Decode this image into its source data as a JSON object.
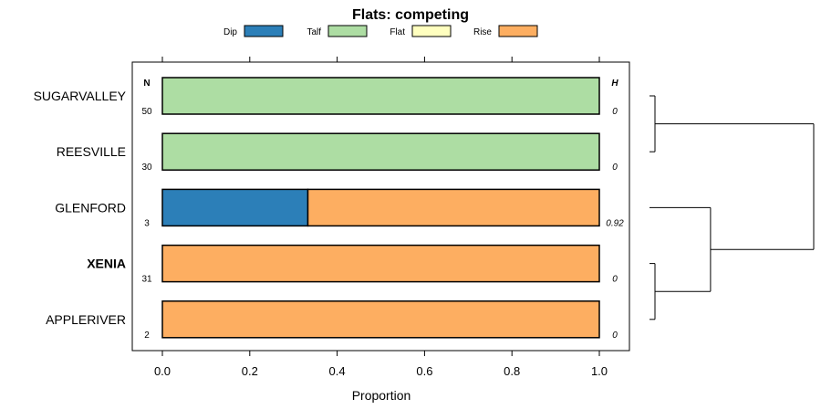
{
  "chart_data": {
    "type": "stacked-bar-horizontal",
    "title": "Flats: competing",
    "xlabel": "Proportion",
    "xlim": [
      0,
      1
    ],
    "x_ticks": [
      "0.0",
      "0.2",
      "0.4",
      "0.6",
      "0.8",
      "1.0"
    ],
    "left_header": "N",
    "right_header": "H",
    "legend": [
      {
        "name": "Dip",
        "color": "#2c7fb8"
      },
      {
        "name": "Talf",
        "color": "#addda3"
      },
      {
        "name": "Flat",
        "color": "#ffffbf"
      },
      {
        "name": "Rise",
        "color": "#fdae61"
      }
    ],
    "categories": [
      {
        "name": "SUGARVALLEY",
        "bold": false,
        "n": "50",
        "h": "0",
        "values": {
          "Dip": 0,
          "Talf": 1,
          "Flat": 0,
          "Rise": 0
        }
      },
      {
        "name": "REESVILLE",
        "bold": false,
        "n": "30",
        "h": "0",
        "values": {
          "Dip": 0,
          "Talf": 1,
          "Flat": 0,
          "Rise": 0
        }
      },
      {
        "name": "GLENFORD",
        "bold": false,
        "n": "3",
        "h": "0.92",
        "values": {
          "Dip": 0.333,
          "Talf": 0,
          "Flat": 0,
          "Rise": 0.667
        }
      },
      {
        "name": "XENIA",
        "bold": true,
        "n": "31",
        "h": "0",
        "values": {
          "Dip": 0,
          "Talf": 0,
          "Flat": 0,
          "Rise": 1
        }
      },
      {
        "name": "APPLERIVER",
        "bold": false,
        "n": "2",
        "h": "0",
        "values": {
          "Dip": 0,
          "Talf": 0,
          "Flat": 0,
          "Rise": 1
        }
      }
    ],
    "dendrogram": {
      "merges": [
        {
          "left": "SUGARVALLEY",
          "right": "REESVILLE",
          "height": 0
        },
        {
          "left": "XENIA",
          "right": "APPLERIVER",
          "height": 0
        },
        {
          "left": "GLENFORD",
          "right": "XENIA+APPLERIVER",
          "height": 0.35
        },
        {
          "left": "SUGARVALLEY+REESVILLE",
          "right": "GLENFORD+XENIA+APPLERIVER",
          "height": 1
        }
      ]
    }
  }
}
